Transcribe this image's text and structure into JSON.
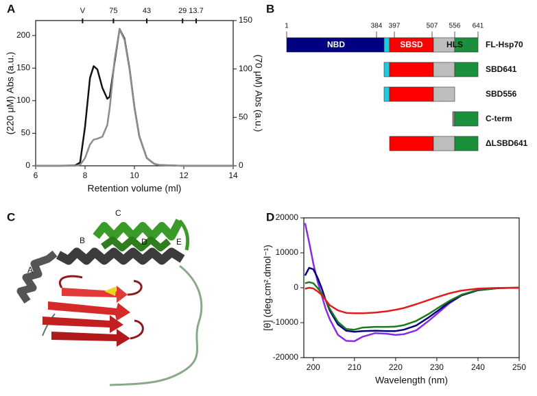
{
  "panel_labels": [
    "A",
    "B",
    "C",
    "D"
  ],
  "chart_data": [
    {
      "type": "line",
      "xlabel": "Retention volume (ml)",
      "ylabel": "(220 μM) Abs (a.u.)",
      "y2label": "(70 μM) Abs (a.u.)",
      "x": [
        6,
        7,
        7.6,
        7.8,
        8.0,
        8.2,
        8.35,
        8.5,
        8.7,
        8.9,
        9.0,
        9.2,
        9.4,
        9.6,
        9.8,
        10.0,
        10.2,
        10.5,
        10.8,
        11,
        12,
        13,
        14
      ],
      "xlim": [
        6,
        14
      ],
      "xticks": [
        6,
        8,
        10,
        12,
        14
      ],
      "ylim": [
        0,
        223
      ],
      "yticks": [
        0,
        50,
        100,
        150,
        200
      ],
      "y2lim": [
        0,
        150
      ],
      "y2ticks": [
        0,
        50,
        100,
        150
      ],
      "markers": [
        {
          "value": 7.9,
          "label": "V"
        },
        {
          "value": 9.15,
          "label": "75"
        },
        {
          "value": 10.5,
          "label": "43"
        },
        {
          "value": 11.95,
          "label": "29"
        },
        {
          "value": 12.5,
          "label": "13.7"
        }
      ],
      "series": [
        {
          "color": "#111111",
          "values": [
            0,
            0,
            0.5,
            5,
            60,
            135,
            153,
            148,
            120,
            103,
            106,
            160,
            210,
            195,
            150,
            90,
            45,
            12,
            3,
            1,
            0,
            0,
            0
          ]
        },
        {
          "color": "#8c8c8c",
          "axis": "y2",
          "values": [
            0,
            0,
            0,
            1,
            8,
            22,
            27,
            28,
            30,
            42,
            60,
            110,
            141,
            130,
            100,
            60,
            30,
            8,
            2,
            1,
            0,
            0,
            0
          ]
        }
      ]
    },
    {
      "type": "line",
      "xlabel": "Wavelength (nm)",
      "ylabel": "[θ] (deg.cm².dmol⁻¹)",
      "x": [
        198,
        199,
        200,
        201,
        202,
        203,
        204,
        206,
        208,
        210,
        212,
        215,
        218,
        220,
        222,
        225,
        228,
        230,
        233,
        236,
        240,
        245,
        250
      ],
      "xlim": [
        197.7,
        250
      ],
      "xticks": [
        200,
        210,
        220,
        230,
        240,
        250
      ],
      "ylim": [
        -20000,
        20000
      ],
      "yticks": [
        -20000,
        -10000,
        0,
        10000,
        20000
      ],
      "series": [
        {
          "color": "#8a2be2",
          "values": [
            18500,
            13000,
            7000,
            2000,
            -2000,
            -6000,
            -9000,
            -13500,
            -15200,
            -15300,
            -14000,
            -13000,
            -13200,
            -13500,
            -13300,
            -12200,
            -9500,
            -7500,
            -4500,
            -2200,
            -700,
            -100,
            0
          ]
        },
        {
          "color": "#000080",
          "values": [
            3500,
            5700,
            5300,
            3000,
            0,
            -3500,
            -6500,
            -10500,
            -12300,
            -12600,
            -12400,
            -12300,
            -12400,
            -12400,
            -12000,
            -10800,
            -8500,
            -6800,
            -4200,
            -2200,
            -700,
            -100,
            0
          ]
        },
        {
          "color": "#1a7a1a",
          "values": [
            1300,
            1600,
            1300,
            0,
            -1500,
            -3500,
            -6000,
            -9800,
            -11800,
            -12000,
            -11400,
            -11200,
            -11200,
            -11100,
            -10700,
            -9500,
            -7500,
            -6000,
            -3800,
            -2000,
            -600,
            -100,
            0
          ]
        },
        {
          "color": "#e31a1c",
          "values": [
            -300,
            0,
            -200,
            -1000,
            -2000,
            -3500,
            -5000,
            -6500,
            -7200,
            -7300,
            -7300,
            -7100,
            -6700,
            -6300,
            -5800,
            -4700,
            -3500,
            -2700,
            -1600,
            -800,
            -250,
            -50,
            0
          ]
        }
      ]
    }
  ],
  "domain_map": {
    "boundaries": [
      "1",
      "384",
      "397",
      "507",
      "556",
      "641"
    ],
    "domains": [
      "NBD",
      "SBSD",
      "HLS"
    ],
    "constructs": [
      "FL-Hsp70",
      "SBD641",
      "SBD556",
      "C-term",
      "ΔLSBD641"
    ]
  },
  "structure": {
    "helix_labels": [
      "A",
      "B",
      "C",
      "D",
      "E"
    ]
  }
}
